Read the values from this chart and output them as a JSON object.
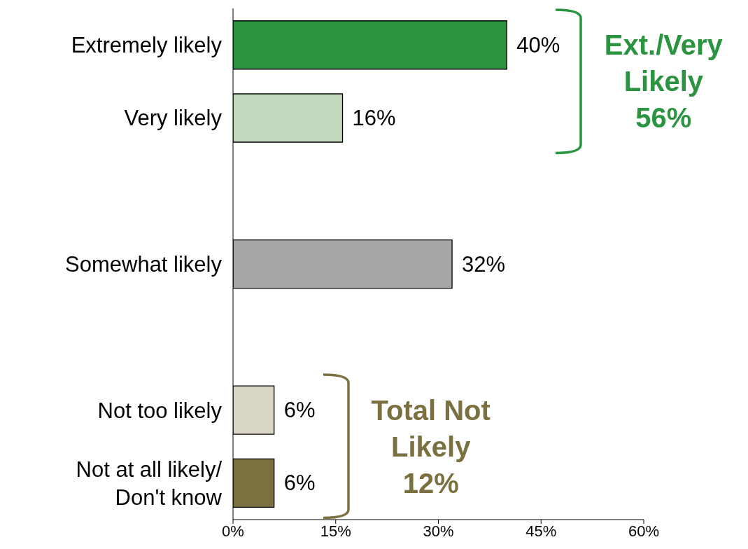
{
  "chart_data": {
    "type": "bar",
    "orientation": "horizontal",
    "categories": [
      "Extremely likely",
      "Very likely",
      null,
      "Somewhat likely",
      null,
      "Not too likely",
      "Not at all likely/ Don't know"
    ],
    "values": [
      40,
      16,
      null,
      32,
      null,
      6,
      6
    ],
    "colors": [
      "#2a9440",
      "#c3d9bd",
      null,
      "#a6a6a6",
      null,
      "#dad7c9",
      "#7a7040"
    ],
    "value_labels": [
      "40%",
      "16%",
      null,
      "32%",
      null,
      "6%",
      "6%"
    ],
    "xlim": [
      0,
      60
    ],
    "xticks": [
      {
        "value": 0,
        "label": "0%"
      },
      {
        "value": 15,
        "label": "15%"
      },
      {
        "value": 30,
        "label": "30%"
      },
      {
        "value": 45,
        "label": "45%"
      },
      {
        "value": 60,
        "label": "60%"
      }
    ],
    "annotations": [
      "Ext./Very Likely 56%",
      "Total Not Likely 12%"
    ],
    "grid": false,
    "legend": false
  }
}
